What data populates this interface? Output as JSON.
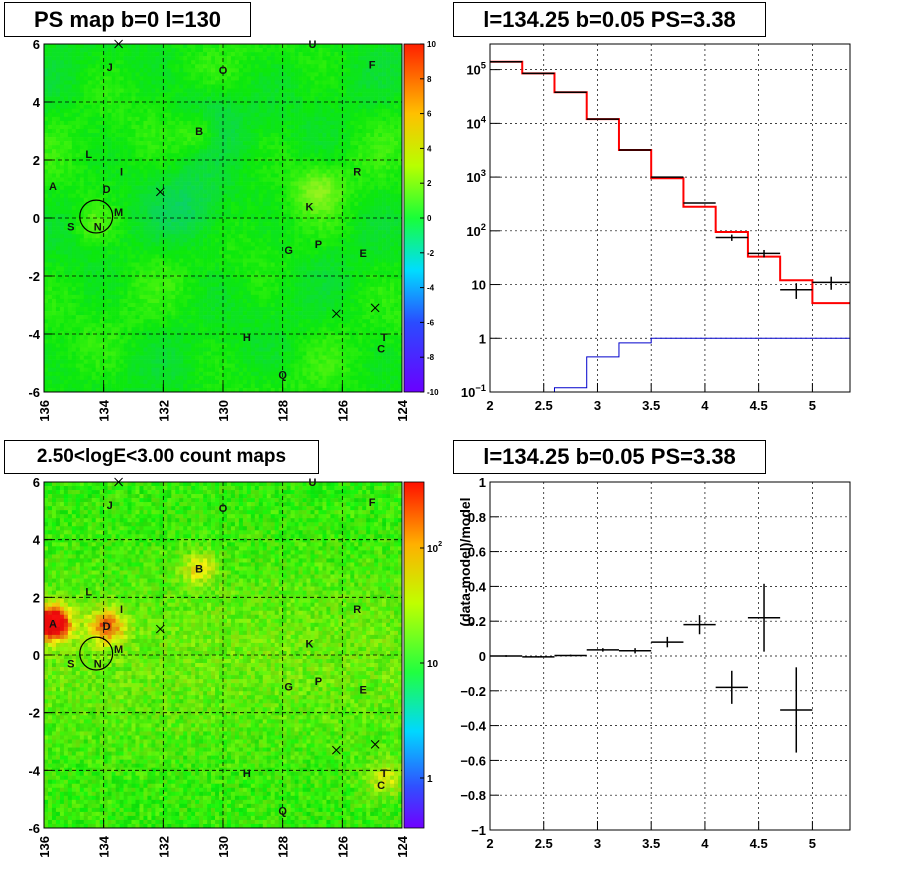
{
  "chart_data": [
    {
      "type": "heatmap",
      "title": "PS map b=0 l=130",
      "xlim": [
        136,
        124
      ],
      "ylim": [
        -6,
        6
      ],
      "x_ticks": [
        136,
        134,
        132,
        130,
        128,
        126,
        124
      ],
      "y_ticks": [
        -6,
        -4,
        -2,
        0,
        2,
        4,
        6
      ],
      "colorbar": {
        "min": -10,
        "max": 10,
        "ticks": [
          10,
          8,
          6,
          4,
          2,
          0,
          -2,
          -4,
          -6,
          -8,
          -10
        ]
      },
      "grid": true,
      "source_labels": [
        {
          "label": "A",
          "l": 135.7,
          "b": 1.1
        },
        {
          "label": "B",
          "l": 130.8,
          "b": 3.0
        },
        {
          "label": "C",
          "l": 124.7,
          "b": -4.5
        },
        {
          "label": "D",
          "l": 133.9,
          "b": 1.0
        },
        {
          "label": "E",
          "l": 125.3,
          "b": -1.2
        },
        {
          "label": "F",
          "l": 125.0,
          "b": 5.3
        },
        {
          "label": "G",
          "l": 127.8,
          "b": -1.1
        },
        {
          "label": "H",
          "l": 129.2,
          "b": -4.1
        },
        {
          "label": "I",
          "l": 133.4,
          "b": 1.6
        },
        {
          "label": "J",
          "l": 133.8,
          "b": 5.2
        },
        {
          "label": "K",
          "l": 127.1,
          "b": 0.4
        },
        {
          "label": "L",
          "l": 134.5,
          "b": 2.2
        },
        {
          "label": "M",
          "l": 133.5,
          "b": 0.2
        },
        {
          "label": "N",
          "l": 134.2,
          "b": -0.3
        },
        {
          "label": "O",
          "l": 130.0,
          "b": 5.1
        },
        {
          "label": "P",
          "l": 126.8,
          "b": -0.9
        },
        {
          "label": "Q",
          "l": 128.0,
          "b": -5.4
        },
        {
          "label": "R",
          "l": 125.5,
          "b": 1.6
        },
        {
          "label": "S",
          "l": 135.1,
          "b": -0.3
        },
        {
          "label": "T",
          "l": 124.6,
          "b": -4.1
        },
        {
          "label": "U",
          "l": 127.0,
          "b": 6.0
        }
      ],
      "cross_markers": [
        {
          "l": 133.5,
          "b": 6.0
        },
        {
          "l": 132.1,
          "b": 0.9
        },
        {
          "l": 126.2,
          "b": -3.3
        },
        {
          "l": 124.9,
          "b": -3.1
        }
      ],
      "circle": {
        "l": 134.25,
        "b": 0.05,
        "r": 0.55
      }
    },
    {
      "type": "line",
      "title": "l=134.25 b=0.05 PS=3.38",
      "xlim": [
        2,
        5.35
      ],
      "y_log": true,
      "ylim": [
        0.1,
        300000
      ],
      "x_ticks": [
        2,
        2.5,
        3,
        3.5,
        4,
        4.5,
        5
      ],
      "y_ticks": [
        {
          "v": 0.1,
          "b": "10",
          "e": "−1"
        },
        {
          "v": 1,
          "b": "1",
          "e": ""
        },
        {
          "v": 10,
          "b": "10",
          "e": ""
        },
        {
          "v": 100,
          "b": "10",
          "e": "2"
        },
        {
          "v": 1000,
          "b": "10",
          "e": "3"
        },
        {
          "v": 10000,
          "b": "10",
          "e": "4"
        },
        {
          "v": 100000,
          "b": "10",
          "e": "5"
        }
      ],
      "grid": true,
      "data_points": [
        {
          "x0": 2.0,
          "x1": 2.3,
          "y": 140000,
          "err": 0
        },
        {
          "x0": 2.3,
          "x1": 2.6,
          "y": 85000,
          "err": 0
        },
        {
          "x0": 2.6,
          "x1": 2.9,
          "y": 38000,
          "err": 0
        },
        {
          "x0": 2.9,
          "x1": 3.2,
          "y": 12000,
          "err": 0
        },
        {
          "x0": 3.2,
          "x1": 3.5,
          "y": 3200,
          "err": 0
        },
        {
          "x0": 3.5,
          "x1": 3.8,
          "y": 1000,
          "err": 0
        },
        {
          "x0": 3.8,
          "x1": 4.1,
          "y": 330,
          "err": 0
        },
        {
          "x0": 4.1,
          "x1": 4.4,
          "y": 75,
          "err": 10
        },
        {
          "x0": 4.4,
          "x1": 4.7,
          "y": 38,
          "err": 6
        },
        {
          "x0": 4.7,
          "x1": 5.0,
          "y": 8.0,
          "err": 2.6
        },
        {
          "x0": 5.0,
          "x1": 5.35,
          "y": 11,
          "err": 3
        }
      ],
      "series": [
        {
          "color": "#ff0000",
          "edges": [
            2.0,
            2.3,
            2.6,
            2.9,
            3.2,
            3.5,
            3.8,
            4.1,
            4.4,
            4.7,
            5.0,
            5.35
          ],
          "values": [
            140000,
            85000,
            38000,
            12000,
            3200,
            950,
            280,
            95,
            33,
            12,
            4.5
          ]
        },
        {
          "color": "#0000cc",
          "edges": [
            2.0,
            2.6,
            2.9,
            3.2,
            3.5,
            5.35
          ],
          "values": [
            0.1,
            0.12,
            0.45,
            0.82,
            1.0
          ]
        }
      ]
    },
    {
      "type": "heatmap",
      "title": "2.50<logE<3.00 count maps",
      "xlim": [
        136,
        124
      ],
      "ylim": [
        -6,
        6
      ],
      "x_ticks": [
        136,
        134,
        132,
        130,
        128,
        126,
        124
      ],
      "y_ticks": [
        -6,
        -4,
        -2,
        0,
        2,
        4,
        6
      ],
      "colorbar": {
        "log": true,
        "ticks": [
          {
            "b": "10",
            "e": "2"
          },
          {
            "b": "10",
            "e": ""
          },
          {
            "b": "1",
            "e": ""
          }
        ]
      },
      "grid": true
    },
    {
      "type": "scatter",
      "title": "l=134.25 b=0.05 PS=3.38",
      "ylabel": "(data-model)/model",
      "xlim": [
        2,
        5.35
      ],
      "ylim": [
        -1,
        1
      ],
      "x_ticks": [
        2,
        2.5,
        3,
        3.5,
        4,
        4.5,
        5
      ],
      "y_ticks": [
        1,
        0.8,
        0.6,
        0.4,
        0.2,
        0,
        -0.2,
        -0.4,
        -0.6,
        -0.8,
        -1
      ],
      "grid": true,
      "points": [
        {
          "x": 2.15,
          "dx": 0.15,
          "y": 0.0,
          "err": 0.005
        },
        {
          "x": 2.45,
          "dx": 0.15,
          "y": -0.005,
          "err": 0.004
        },
        {
          "x": 2.75,
          "dx": 0.15,
          "y": 0.003,
          "err": 0.005
        },
        {
          "x": 3.05,
          "dx": 0.15,
          "y": 0.035,
          "err": 0.01
        },
        {
          "x": 3.35,
          "dx": 0.15,
          "y": 0.03,
          "err": 0.015
        },
        {
          "x": 3.65,
          "dx": 0.15,
          "y": 0.08,
          "err": 0.03
        },
        {
          "x": 3.95,
          "dx": 0.15,
          "y": 0.18,
          "err": 0.055
        },
        {
          "x": 4.25,
          "dx": 0.15,
          "y": -0.18,
          "err": 0.095
        },
        {
          "x": 4.55,
          "dx": 0.15,
          "y": 0.22,
          "err": 0.195
        },
        {
          "x": 4.85,
          "dx": 0.15,
          "y": -0.31,
          "err": 0.245
        }
      ]
    }
  ]
}
